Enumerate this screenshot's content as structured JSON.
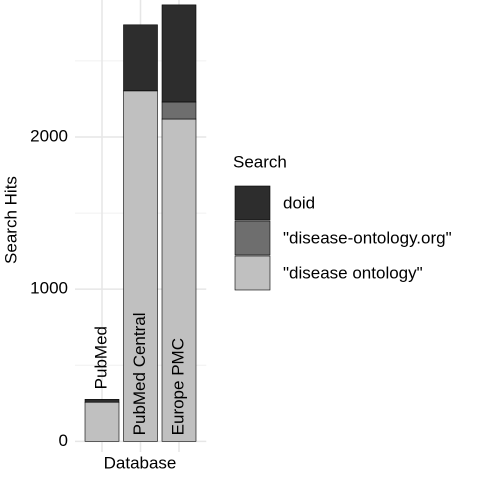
{
  "chart_data": {
    "type": "stacked_bar",
    "x_label": "Database",
    "y_label": "Search Hits",
    "legend_title": "Search",
    "categories": [
      "PubMed",
      "PubMed Central",
      "Europe PMC"
    ],
    "series": [
      {
        "name": "\"disease ontology\"",
        "color": "#c0c0c0",
        "values": [
          257,
          2303,
          2118
        ]
      },
      {
        "name": "\"disease-ontology.org\"",
        "color": "#6e6e6e",
        "values": [
          0,
          0,
          112
        ]
      },
      {
        "name": "doid",
        "color": "#2d2d2d",
        "values": [
          19,
          434,
          638
        ]
      }
    ],
    "ylim": [
      -70,
      2900
    ],
    "yticks": [
      0,
      1000,
      2000
    ],
    "y_minor_ticks": [
      500,
      1500,
      2500
    ],
    "grid": true,
    "legend": "right"
  }
}
